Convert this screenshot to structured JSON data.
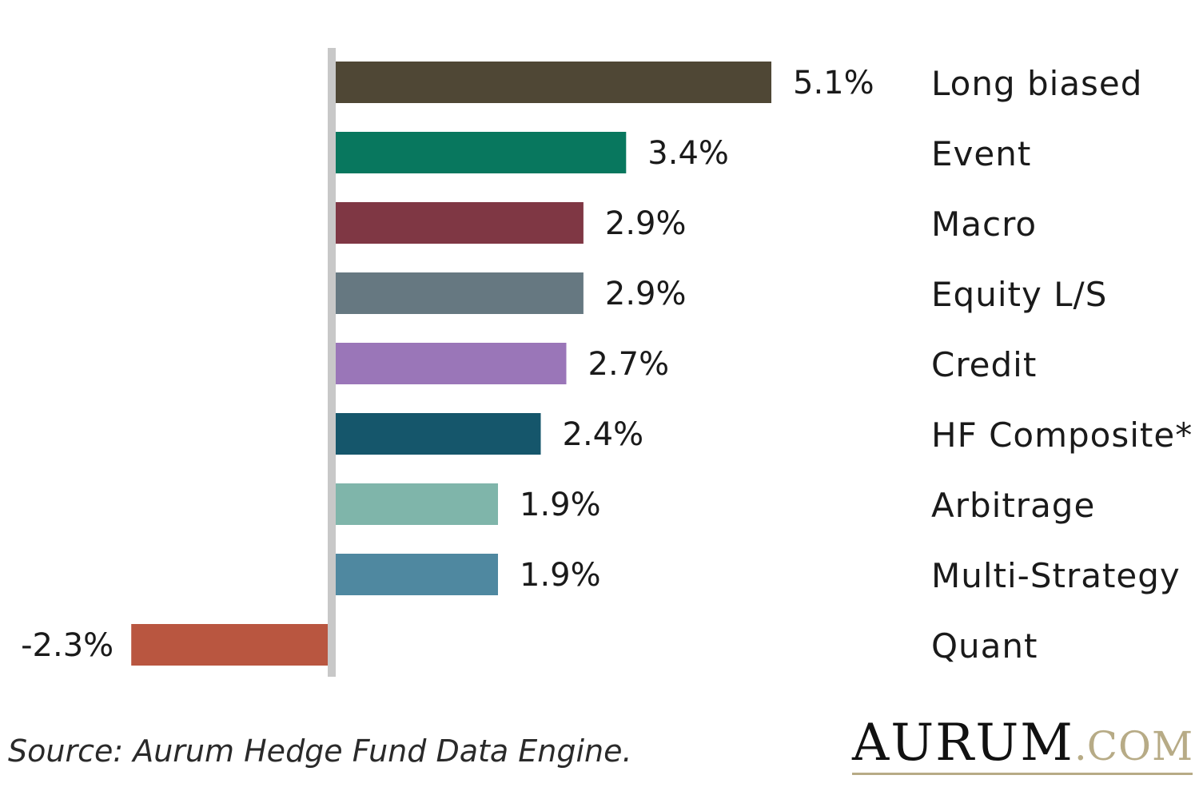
{
  "chart_data": {
    "type": "bar",
    "orientation": "horizontal",
    "categories": [
      "Long biased",
      "Event",
      "Macro",
      "Equity L/S",
      "Credit",
      "HF Composite*",
      "Arbitrage",
      "Multi-Strategy",
      "Quant"
    ],
    "values": [
      5.1,
      3.4,
      2.9,
      2.9,
      2.7,
      2.4,
      1.9,
      1.9,
      -2.3
    ],
    "value_labels": [
      "5.1%",
      "3.4%",
      "2.9%",
      "2.9%",
      "2.7%",
      "2.4%",
      "1.9%",
      "1.9%",
      "-2.3%"
    ],
    "colors": [
      "#4f4735",
      "#08775e",
      "#7f3744",
      "#667881",
      "#9a76b8",
      "#15566b",
      "#7fb5aa",
      "#4f88a0",
      "#b95640"
    ],
    "axis_color": "#c8c8c8",
    "xlim": [
      -2.3,
      5.1
    ],
    "grid": false,
    "legend": "none",
    "title": "",
    "xlabel": "",
    "ylabel": ""
  },
  "footer": {
    "source": "Source: Aurum Hedge Fund Data Engine."
  },
  "logo": {
    "word": "AURUM",
    "dot": ".",
    "suffix": "COM",
    "word_color": "#111111",
    "accent_color": "#b7ab86"
  }
}
